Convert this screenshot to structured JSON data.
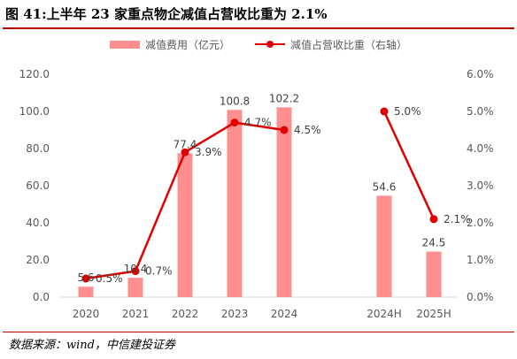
{
  "title": "图 41:上半年 23 家重点物企减值占营收比重为 2.1%",
  "source": "数据来源：wind，中信建投证券",
  "colors": {
    "bar": "#ff8f8f",
    "line": "#e00000",
    "accent_rule": "#c00000"
  },
  "chart_data": {
    "type": "bar",
    "categories": [
      "2020",
      "2021",
      "2022",
      "2023",
      "2024",
      "2024H",
      "2025H"
    ],
    "series": [
      {
        "name": "减值费用（亿元）",
        "type": "bar",
        "axis": "left",
        "values": [
          5.6,
          10.4,
          77.4,
          100.8,
          102.2,
          54.6,
          24.5
        ],
        "labels": [
          "5.6",
          "10.4",
          "77.4",
          "100.8",
          "102.2",
          "54.6",
          "24.5"
        ]
      },
      {
        "name": "减值占营收比重（右轴）",
        "type": "line",
        "axis": "right",
        "values": [
          0.5,
          0.7,
          3.9,
          4.7,
          4.5,
          5.0,
          2.1
        ],
        "labels": [
          "0.5%",
          "0.7%",
          "3.9%",
          "4.7%",
          "4.5%",
          "5.0%",
          "2.1%"
        ],
        "segments": [
          [
            0,
            4
          ],
          [
            5,
            6
          ]
        ]
      }
    ],
    "y_left": {
      "min": 0,
      "max": 120,
      "step": 20,
      "ticks": [
        "0.0",
        "20.0",
        "40.0",
        "60.0",
        "80.0",
        "100.0",
        "120.0"
      ]
    },
    "y_right": {
      "min": 0,
      "max": 6,
      "step": 1,
      "ticks": [
        "0.0%",
        "1.0%",
        "2.0%",
        "3.0%",
        "4.0%",
        "5.0%",
        "6.0%"
      ]
    },
    "grid": false,
    "legend_position": "top"
  }
}
